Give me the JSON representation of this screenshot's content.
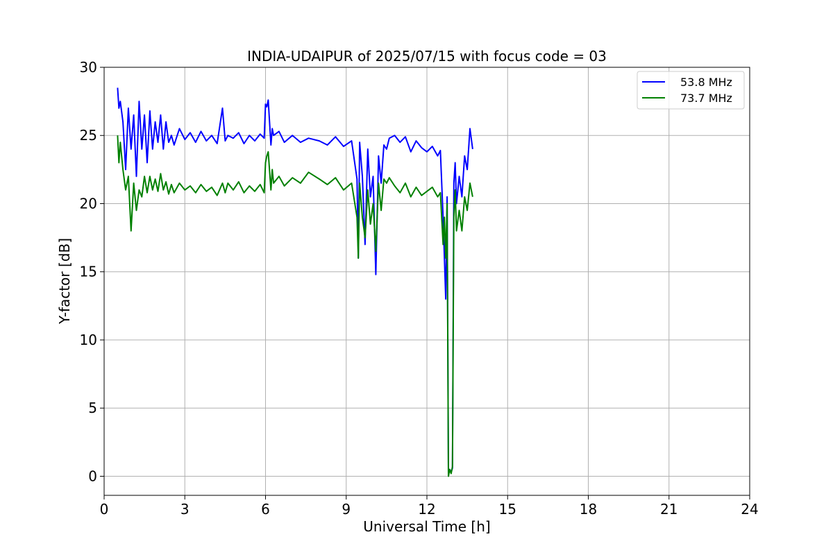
{
  "chart_data": {
    "type": "line",
    "title": "INDIA-UDAIPUR of 2025/07/15 with focus code = 03",
    "xlabel": "Universal Time [h]",
    "ylabel": "Y-factor [dB]",
    "xlim": [
      0,
      24
    ],
    "ylim": [
      -1.4,
      30
    ],
    "xticks": [
      0,
      3,
      6,
      9,
      12,
      15,
      18,
      21,
      24
    ],
    "yticks": [
      0,
      5,
      10,
      15,
      20,
      25,
      30
    ],
    "grid": true,
    "legend_position": "top-right",
    "series": [
      {
        "name": "53.8 MHz",
        "color": "#0000ff",
        "x": [
          0.5,
          0.55,
          0.6,
          0.7,
          0.8,
          0.9,
          1.0,
          1.1,
          1.2,
          1.3,
          1.4,
          1.5,
          1.6,
          1.7,
          1.8,
          1.9,
          2.0,
          2.1,
          2.2,
          2.3,
          2.4,
          2.5,
          2.6,
          2.8,
          3.0,
          3.2,
          3.4,
          3.6,
          3.8,
          4.0,
          4.2,
          4.4,
          4.5,
          4.6,
          4.8,
          5.0,
          5.2,
          5.4,
          5.6,
          5.8,
          5.95,
          6.0,
          6.05,
          6.1,
          6.2,
          6.25,
          6.3,
          6.5,
          6.7,
          7.0,
          7.3,
          7.6,
          8.0,
          8.3,
          8.6,
          8.9,
          9.2,
          9.4,
          9.45,
          9.5,
          9.6,
          9.7,
          9.8,
          9.9,
          10.0,
          10.1,
          10.2,
          10.3,
          10.4,
          10.5,
          10.6,
          10.8,
          11.0,
          11.2,
          11.4,
          11.6,
          11.8,
          12.0,
          12.2,
          12.4,
          12.5,
          12.6,
          12.65,
          12.7,
          12.75,
          12.8,
          12.85,
          12.9,
          12.95,
          13.0,
          13.05,
          13.1,
          13.2,
          13.3,
          13.4,
          13.5,
          13.6,
          13.7
        ],
        "y": [
          28.5,
          27.0,
          27.5,
          26.0,
          22.5,
          27.0,
          24.0,
          26.5,
          22.0,
          27.5,
          24.0,
          26.5,
          23.0,
          26.8,
          24.0,
          26.0,
          24.5,
          26.5,
          24.0,
          26.0,
          24.5,
          25.0,
          24.3,
          25.5,
          24.7,
          25.2,
          24.5,
          25.3,
          24.6,
          25.0,
          24.4,
          27.0,
          24.6,
          25.0,
          24.8,
          25.2,
          24.4,
          25.0,
          24.6,
          25.1,
          24.8,
          27.3,
          27.1,
          27.6,
          24.3,
          25.5,
          25.0,
          25.3,
          24.5,
          25.0,
          24.5,
          24.8,
          24.6,
          24.3,
          24.9,
          24.2,
          24.6,
          21.8,
          16.0,
          24.5,
          22.0,
          17.0,
          24.0,
          20.5,
          22.0,
          14.8,
          23.5,
          21.5,
          24.3,
          24.0,
          24.8,
          25.0,
          24.5,
          24.9,
          23.8,
          24.6,
          24.1,
          23.8,
          24.2,
          23.5,
          23.9,
          19.0,
          16.0,
          13.0,
          20.5,
          0.2,
          0.5,
          0.3,
          0.6,
          21.5,
          23.0,
          20.0,
          22.0,
          20.5,
          23.5,
          22.5,
          25.5,
          24.0
        ]
      },
      {
        "name": "73.7 MHz",
        "color": "#008000",
        "x": [
          0.5,
          0.55,
          0.6,
          0.7,
          0.8,
          0.9,
          1.0,
          1.1,
          1.2,
          1.3,
          1.4,
          1.5,
          1.6,
          1.7,
          1.8,
          1.9,
          2.0,
          2.1,
          2.2,
          2.3,
          2.4,
          2.5,
          2.6,
          2.8,
          3.0,
          3.2,
          3.4,
          3.6,
          3.8,
          4.0,
          4.2,
          4.4,
          4.5,
          4.6,
          4.8,
          5.0,
          5.2,
          5.4,
          5.6,
          5.8,
          5.95,
          6.0,
          6.05,
          6.1,
          6.2,
          6.25,
          6.3,
          6.5,
          6.7,
          7.0,
          7.3,
          7.6,
          8.0,
          8.3,
          8.6,
          8.9,
          9.2,
          9.4,
          9.45,
          9.5,
          9.6,
          9.7,
          9.8,
          9.9,
          10.0,
          10.1,
          10.2,
          10.3,
          10.4,
          10.5,
          10.6,
          10.8,
          11.0,
          11.2,
          11.4,
          11.6,
          11.8,
          12.0,
          12.2,
          12.4,
          12.5,
          12.6,
          12.65,
          12.7,
          12.75,
          12.8,
          12.85,
          12.9,
          12.95,
          13.0,
          13.05,
          13.1,
          13.2,
          13.3,
          13.4,
          13.5,
          13.6,
          13.7
        ],
        "y": [
          25.0,
          23.0,
          24.5,
          22.5,
          21.0,
          22.0,
          18.0,
          21.5,
          19.5,
          21.0,
          20.5,
          22.0,
          20.8,
          22.0,
          21.0,
          21.8,
          20.9,
          22.2,
          21.0,
          21.6,
          20.7,
          21.4,
          20.8,
          21.5,
          21.0,
          21.3,
          20.8,
          21.4,
          20.9,
          21.2,
          20.6,
          21.5,
          20.8,
          21.5,
          21.0,
          21.6,
          20.8,
          21.3,
          20.9,
          21.4,
          20.8,
          23.0,
          23.5,
          23.8,
          21.0,
          22.5,
          21.5,
          22.0,
          21.3,
          21.9,
          21.5,
          22.3,
          21.8,
          21.4,
          21.9,
          21.0,
          21.5,
          19.0,
          16.0,
          21.5,
          19.0,
          17.5,
          21.0,
          18.5,
          20.0,
          16.5,
          21.5,
          19.5,
          21.8,
          21.5,
          21.9,
          21.3,
          20.8,
          21.5,
          20.5,
          21.2,
          20.6,
          20.9,
          21.2,
          20.5,
          20.8,
          17.0,
          19.0,
          16.0,
          20.0,
          0.0,
          0.5,
          0.2,
          0.7,
          19.0,
          21.0,
          18.0,
          19.5,
          18.0,
          20.5,
          19.5,
          21.5,
          20.5
        ]
      }
    ]
  }
}
